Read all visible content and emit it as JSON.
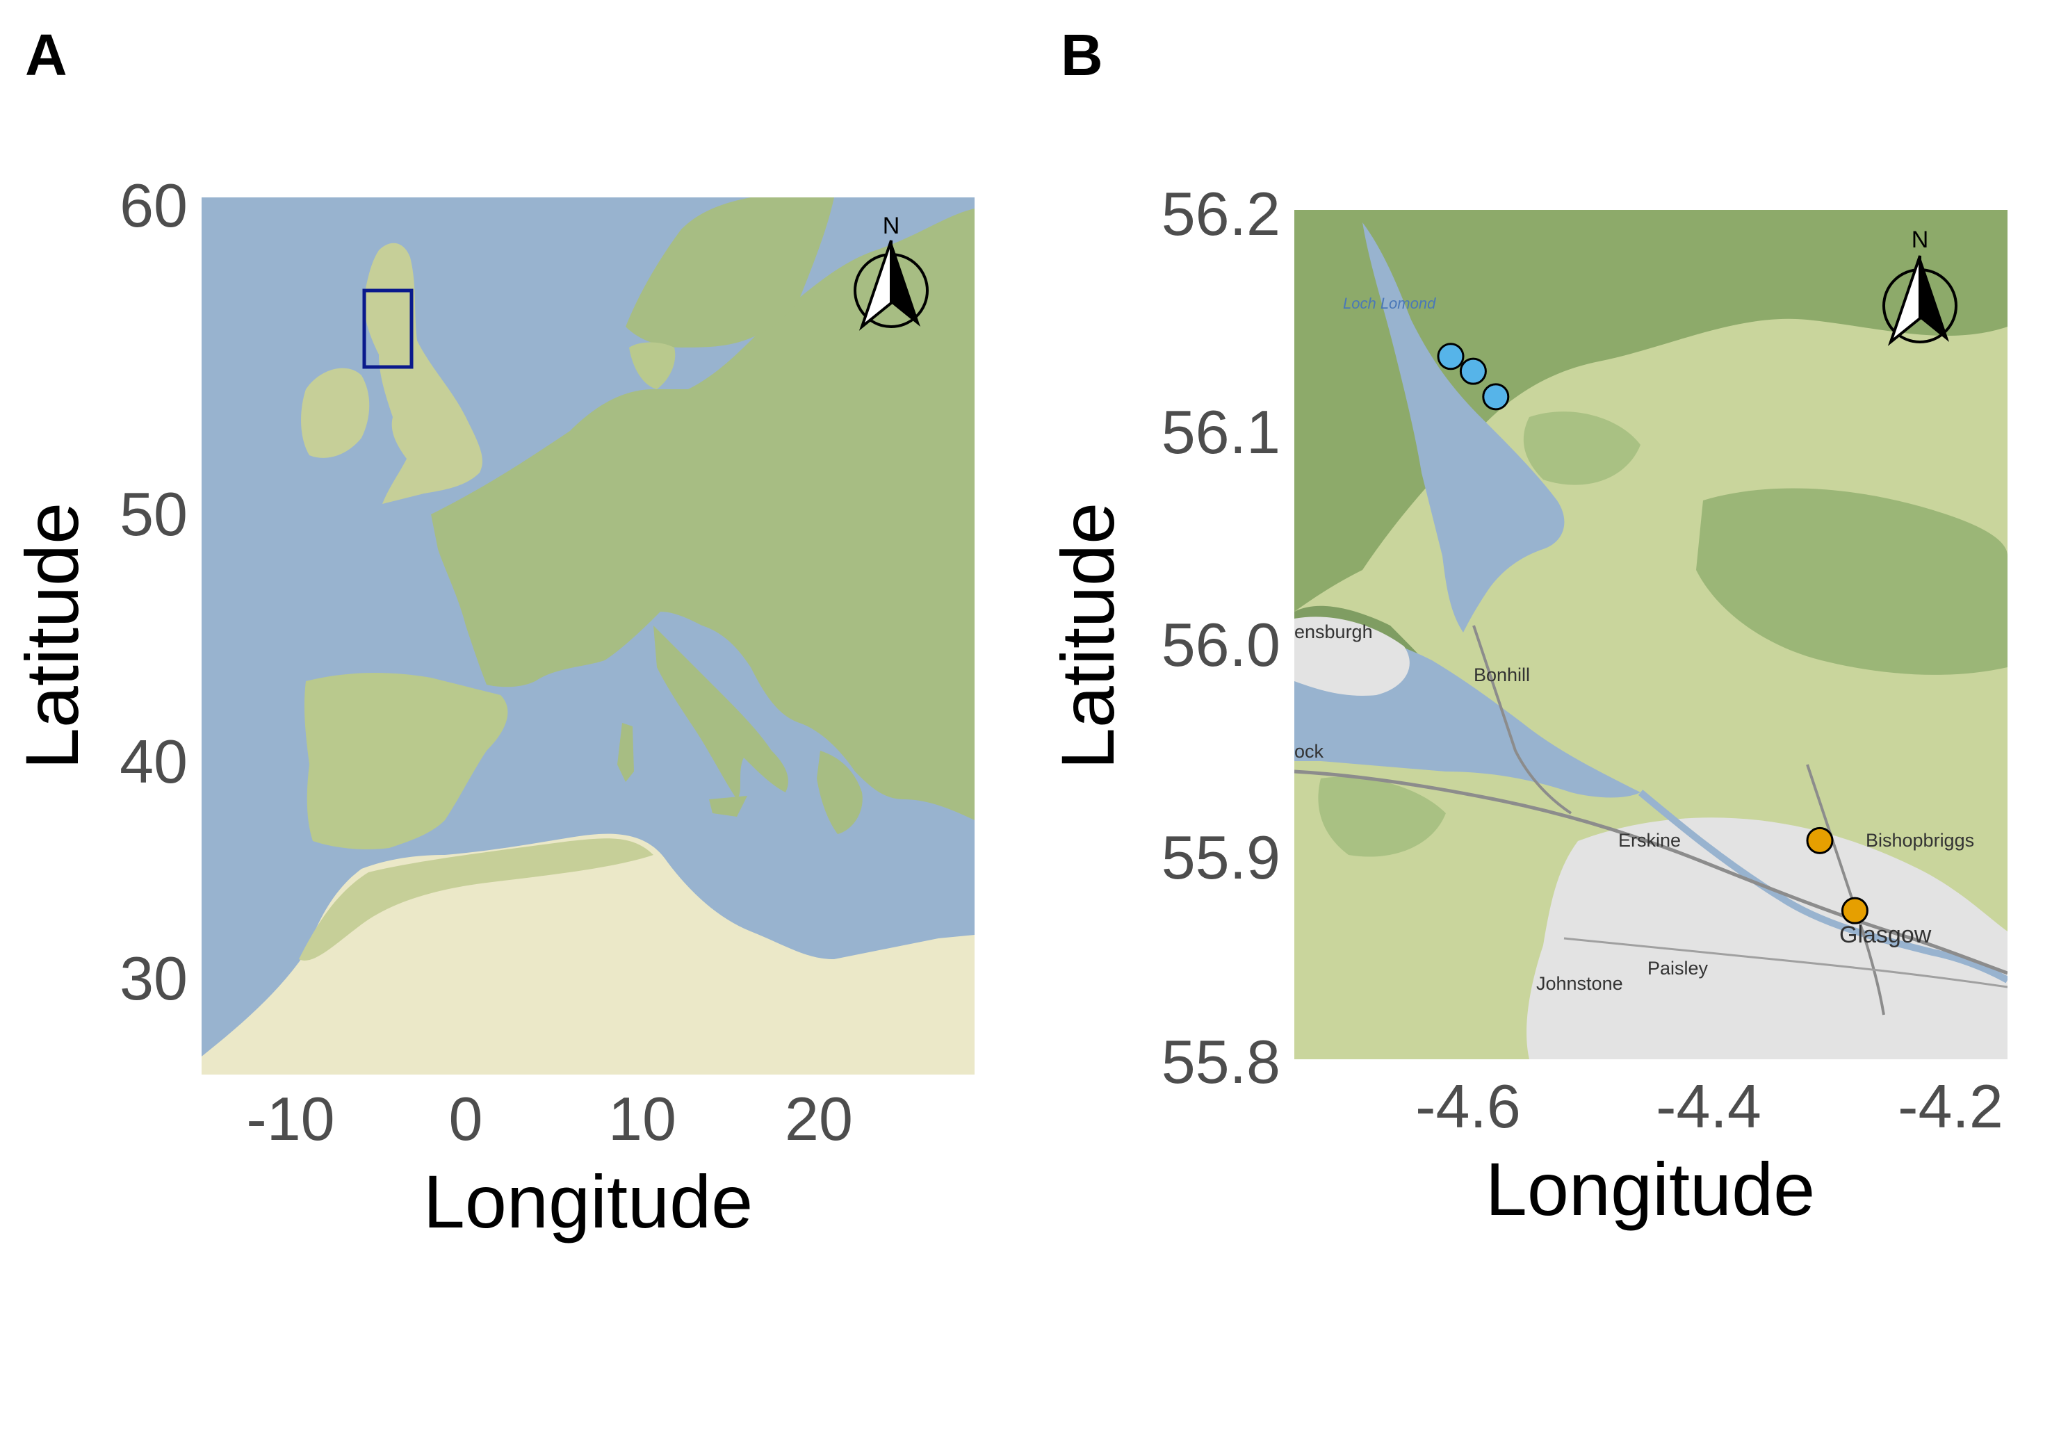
{
  "panels": [
    {
      "letter": "A",
      "x_label": "Longitude",
      "y_label": "Latitude",
      "x_ticks": [
        "-10",
        "0",
        "10",
        "20"
      ],
      "y_ticks": [
        "60",
        "50",
        "40",
        "30"
      ],
      "north_label": "N",
      "inset_box": {
        "lon_min": -5.9,
        "lon_max": -3.2,
        "lat_min": 54.7,
        "lat_max": 57.9,
        "color": "#0a1a8c"
      }
    },
    {
      "letter": "B",
      "x_label": "Longitude",
      "y_label": "Latitude",
      "x_ticks": [
        "-4.6",
        "-4.4",
        "-4.2"
      ],
      "y_ticks": [
        "56.2",
        "56.1",
        "56.0",
        "55.9",
        "55.8"
      ],
      "north_label": "N",
      "lake_label": "Loch Lomond",
      "places": [
        "ensburgh",
        "Bonhill",
        "ock",
        "Erskine",
        "Bishopbriggs",
        "Glasgow",
        "Paisley",
        "Johnstone"
      ]
    }
  ],
  "chart_data": {
    "type": "scatter",
    "xlim": [
      -4.75,
      -4.18
    ],
    "ylim": [
      55.8,
      56.2
    ],
    "series": [
      {
        "color": "#56b4e9",
        "points": [
          {
            "x": -4.625,
            "y": 56.131
          },
          {
            "x": -4.607,
            "y": 56.124
          },
          {
            "x": -4.589,
            "y": 56.112
          }
        ]
      },
      {
        "color": "#e69f00",
        "points": [
          {
            "x": -4.33,
            "y": 55.903
          },
          {
            "x": -4.302,
            "y": 55.87
          }
        ]
      }
    ]
  }
}
